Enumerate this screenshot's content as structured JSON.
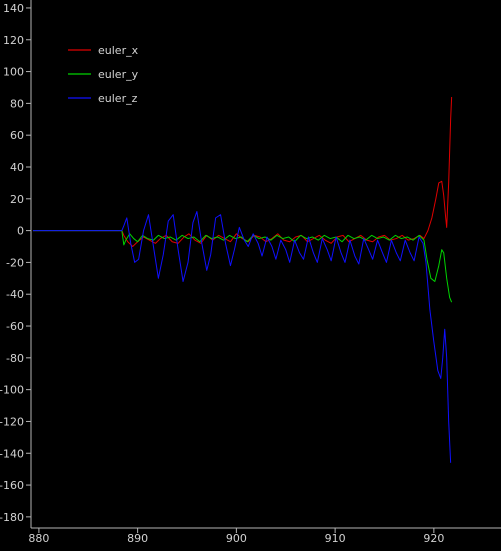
{
  "chart_data": {
    "type": "line",
    "title": "",
    "xlabel": "",
    "ylabel": "",
    "xlim": [
      879.2,
      926.8
    ],
    "ylim": [
      -187,
      145
    ],
    "xticks": [
      880,
      890,
      900,
      910,
      920
    ],
    "yticks": [
      140,
      120,
      100,
      80,
      60,
      40,
      20,
      0,
      -20,
      -40,
      -60,
      -80,
      -100,
      -120,
      -140,
      -160,
      -180
    ],
    "grid": false,
    "legend_position": "top-left",
    "colors": {
      "background": "#000000",
      "axis": "#b4b4b4",
      "text": "#d2d2d2"
    },
    "series": [
      {
        "name": "euler_x",
        "color": "#e00000",
        "points": [
          [
            879.4,
            0
          ],
          [
            888.4,
            0
          ],
          [
            888.6,
            -3
          ],
          [
            889.0,
            -7
          ],
          [
            889.5,
            -10
          ],
          [
            890.0,
            -7
          ],
          [
            890.6,
            -4
          ],
          [
            891.2,
            -6
          ],
          [
            891.8,
            -8
          ],
          [
            892.3,
            -5
          ],
          [
            892.9,
            -3
          ],
          [
            893.5,
            -7
          ],
          [
            894.1,
            -8
          ],
          [
            894.7,
            -4
          ],
          [
            895.2,
            -2
          ],
          [
            895.8,
            -6
          ],
          [
            896.4,
            -8
          ],
          [
            897.0,
            -3
          ],
          [
            897.6,
            -6
          ],
          [
            898.2,
            -3
          ],
          [
            898.8,
            -5
          ],
          [
            899.4,
            -7
          ],
          [
            900.0,
            -2
          ],
          [
            900.6,
            -5
          ],
          [
            901.2,
            -7
          ],
          [
            901.8,
            -3
          ],
          [
            902.4,
            -4
          ],
          [
            903.0,
            -7
          ],
          [
            903.6,
            -5
          ],
          [
            904.2,
            -2
          ],
          [
            904.8,
            -6
          ],
          [
            905.4,
            -7
          ],
          [
            906.0,
            -4
          ],
          [
            906.6,
            -3
          ],
          [
            907.2,
            -7
          ],
          [
            907.8,
            -5
          ],
          [
            908.4,
            -3
          ],
          [
            909.0,
            -6
          ],
          [
            909.6,
            -8
          ],
          [
            910.2,
            -4
          ],
          [
            910.8,
            -3
          ],
          [
            911.4,
            -7
          ],
          [
            912.0,
            -5
          ],
          [
            912.6,
            -3
          ],
          [
            913.2,
            -6
          ],
          [
            913.8,
            -7
          ],
          [
            914.4,
            -4
          ],
          [
            915.0,
            -3
          ],
          [
            915.6,
            -6
          ],
          [
            916.2,
            -5
          ],
          [
            916.8,
            -3
          ],
          [
            917.4,
            -6
          ],
          [
            918.0,
            -5
          ],
          [
            918.6,
            -3
          ],
          [
            919.0,
            -5
          ],
          [
            919.4,
            0
          ],
          [
            919.8,
            8
          ],
          [
            920.2,
            20
          ],
          [
            920.5,
            30
          ],
          [
            920.8,
            31
          ],
          [
            921.0,
            22
          ],
          [
            921.2,
            8
          ],
          [
            921.3,
            2
          ],
          [
            921.5,
            30
          ],
          [
            921.7,
            70
          ],
          [
            921.8,
            84
          ]
        ]
      },
      {
        "name": "euler_y",
        "color": "#00d400",
        "points": [
          [
            879.4,
            0
          ],
          [
            888.4,
            0
          ],
          [
            888.6,
            -9
          ],
          [
            888.8,
            -6
          ],
          [
            889.2,
            -2
          ],
          [
            889.6,
            -5
          ],
          [
            890.0,
            -7
          ],
          [
            890.5,
            -3
          ],
          [
            891.0,
            -5
          ],
          [
            891.6,
            -6
          ],
          [
            892.1,
            -3
          ],
          [
            892.7,
            -5
          ],
          [
            893.3,
            -4
          ],
          [
            893.9,
            -6
          ],
          [
            894.5,
            -3
          ],
          [
            895.1,
            -5
          ],
          [
            895.7,
            -4
          ],
          [
            896.3,
            -7
          ],
          [
            896.9,
            -3
          ],
          [
            897.5,
            -5
          ],
          [
            898.1,
            -4
          ],
          [
            898.7,
            -6
          ],
          [
            899.3,
            -3
          ],
          [
            899.9,
            -5
          ],
          [
            900.5,
            -4
          ],
          [
            901.1,
            -7
          ],
          [
            901.7,
            -3
          ],
          [
            902.3,
            -5
          ],
          [
            902.9,
            -4
          ],
          [
            903.5,
            -6
          ],
          [
            904.1,
            -3
          ],
          [
            904.7,
            -5
          ],
          [
            905.3,
            -4
          ],
          [
            905.9,
            -7
          ],
          [
            906.5,
            -3
          ],
          [
            907.1,
            -5
          ],
          [
            907.7,
            -4
          ],
          [
            908.3,
            -6
          ],
          [
            908.9,
            -3
          ],
          [
            909.5,
            -5
          ],
          [
            910.1,
            -4
          ],
          [
            910.7,
            -7
          ],
          [
            911.3,
            -3
          ],
          [
            911.9,
            -5
          ],
          [
            912.5,
            -4
          ],
          [
            913.1,
            -6
          ],
          [
            913.7,
            -3
          ],
          [
            914.3,
            -5
          ],
          [
            914.9,
            -4
          ],
          [
            915.5,
            -6
          ],
          [
            916.1,
            -3
          ],
          [
            916.7,
            -5
          ],
          [
            917.3,
            -4
          ],
          [
            917.9,
            -6
          ],
          [
            918.5,
            -3
          ],
          [
            919.0,
            -6
          ],
          [
            919.3,
            -18
          ],
          [
            919.7,
            -30
          ],
          [
            920.1,
            -32
          ],
          [
            920.5,
            -22
          ],
          [
            920.8,
            -12
          ],
          [
            921.0,
            -14
          ],
          [
            921.3,
            -30
          ],
          [
            921.6,
            -42
          ],
          [
            921.8,
            -45
          ]
        ]
      },
      {
        "name": "euler_z",
        "color": "#1010ff",
        "points": [
          [
            879.4,
            0
          ],
          [
            888.4,
            0
          ],
          [
            888.6,
            3
          ],
          [
            888.9,
            8
          ],
          [
            889.3,
            -8
          ],
          [
            889.7,
            -20
          ],
          [
            890.1,
            -18
          ],
          [
            890.6,
            0
          ],
          [
            891.1,
            10
          ],
          [
            891.6,
            -10
          ],
          [
            892.1,
            -30
          ],
          [
            892.6,
            -15
          ],
          [
            893.1,
            6
          ],
          [
            893.6,
            10
          ],
          [
            894.1,
            -12
          ],
          [
            894.6,
            -32
          ],
          [
            895.1,
            -20
          ],
          [
            895.6,
            5
          ],
          [
            896.0,
            12
          ],
          [
            896.5,
            -8
          ],
          [
            897.0,
            -25
          ],
          [
            897.4,
            -15
          ],
          [
            897.9,
            8
          ],
          [
            898.4,
            10
          ],
          [
            898.9,
            -8
          ],
          [
            899.4,
            -22
          ],
          [
            899.8,
            -12
          ],
          [
            900.3,
            2
          ],
          [
            900.8,
            -6
          ],
          [
            901.2,
            -10
          ],
          [
            901.7,
            -2
          ],
          [
            902.2,
            -8
          ],
          [
            902.6,
            -16
          ],
          [
            903.1,
            -4
          ],
          [
            903.6,
            -10
          ],
          [
            904.0,
            -18
          ],
          [
            904.5,
            -6
          ],
          [
            905.0,
            -12
          ],
          [
            905.4,
            -20
          ],
          [
            905.9,
            -6
          ],
          [
            906.4,
            -14
          ],
          [
            906.8,
            -18
          ],
          [
            907.3,
            -4
          ],
          [
            907.8,
            -14
          ],
          [
            908.2,
            -20
          ],
          [
            908.7,
            -5
          ],
          [
            909.2,
            -12
          ],
          [
            909.6,
            -19
          ],
          [
            910.1,
            -4
          ],
          [
            910.6,
            -14
          ],
          [
            911.0,
            -20
          ],
          [
            911.5,
            -6
          ],
          [
            912.0,
            -16
          ],
          [
            912.4,
            -21
          ],
          [
            912.9,
            -5
          ],
          [
            913.4,
            -12
          ],
          [
            913.8,
            -18
          ],
          [
            914.3,
            -6
          ],
          [
            914.8,
            -14
          ],
          [
            915.2,
            -20
          ],
          [
            915.7,
            -6
          ],
          [
            916.2,
            -14
          ],
          [
            916.6,
            -19
          ],
          [
            917.1,
            -6
          ],
          [
            917.6,
            -14
          ],
          [
            918.0,
            -19
          ],
          [
            918.5,
            -4
          ],
          [
            918.9,
            -8
          ],
          [
            919.2,
            -20
          ],
          [
            919.6,
            -50
          ],
          [
            920.0,
            -70
          ],
          [
            920.4,
            -88
          ],
          [
            920.7,
            -93
          ],
          [
            920.9,
            -80
          ],
          [
            921.1,
            -62
          ],
          [
            921.3,
            -80
          ],
          [
            921.5,
            -120
          ],
          [
            921.7,
            -146
          ]
        ]
      }
    ]
  }
}
